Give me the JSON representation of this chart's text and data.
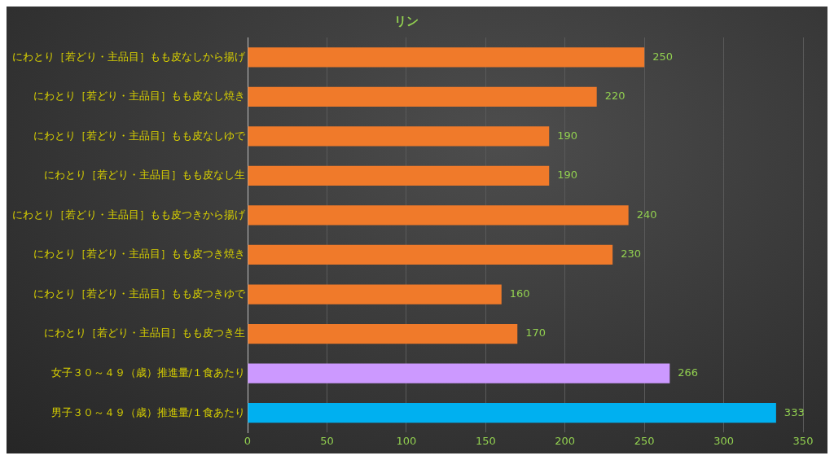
{
  "chart_data": {
    "type": "bar",
    "orientation": "horizontal",
    "title": "リン",
    "categories": [
      "にわとり［若どり・主品目］もも皮なしから揚げ",
      "にわとり［若どり・主品目］もも皮なし焼き",
      "にわとり［若どり・主品目］もも皮なしゆで",
      "にわとり［若どり・主品目］もも皮なし生",
      "にわとり［若どり・主品目］もも皮つきから揚げ",
      "にわとり［若どり・主品目］もも皮つき焼き",
      "にわとり［若どり・主品目］もも皮つきゆで",
      "にわとり［若どり・主品目］もも皮つき生",
      "女子３０～４９（歳）推進量/１食あたり",
      "男子３０～４９（歳）推進量/１食あたり"
    ],
    "values": [
      250,
      220,
      190,
      190,
      240,
      230,
      160,
      170,
      266,
      333
    ],
    "colors": [
      "#f07a2a",
      "#f07a2a",
      "#f07a2a",
      "#f07a2a",
      "#f07a2a",
      "#f07a2a",
      "#f07a2a",
      "#f07a2a",
      "#cc99ff",
      "#00b0f0"
    ],
    "xlim": [
      0,
      350
    ],
    "xticks": [
      0,
      50,
      100,
      150,
      200,
      250,
      300,
      350
    ],
    "grid": "x",
    "data_labels": true,
    "legend": false
  }
}
